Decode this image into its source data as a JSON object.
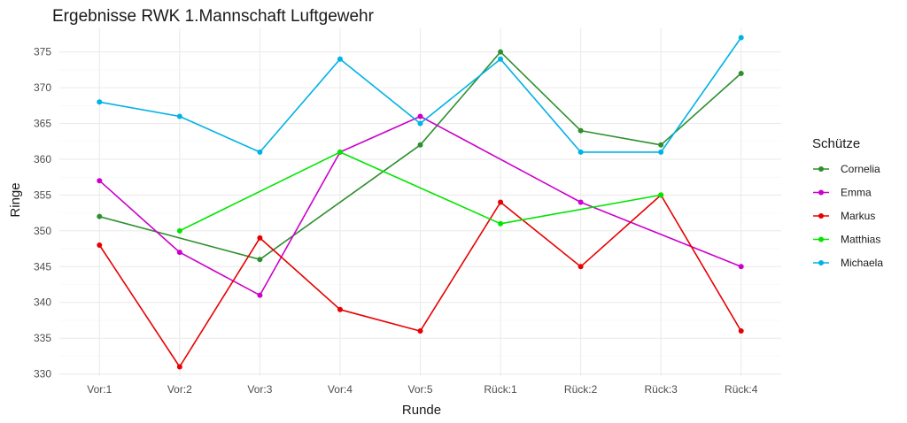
{
  "chart_data": {
    "type": "line",
    "title": "Ergebnisse RWK 1.Mannschaft Luftgewehr",
    "xlabel": "Runde",
    "ylabel": "Ringe",
    "categories": [
      "Vor:1",
      "Vor:2",
      "Vor:3",
      "Vor:4",
      "Vor:5",
      "Rück:1",
      "Rück:2",
      "Rück:3",
      "Rück:4"
    ],
    "yticks": [
      330,
      335,
      340,
      345,
      350,
      355,
      360,
      365,
      370,
      375
    ],
    "ytick_labels": [
      "330",
      "335",
      "340",
      "345",
      "350",
      "355",
      "360",
      "365",
      "370",
      "375"
    ],
    "ylim": [
      329.7,
      378.3
    ],
    "grid": true,
    "legend": {
      "title": "Schütze",
      "position": "right"
    },
    "series": [
      {
        "name": "Cornelia",
        "color": "#2f8f2f",
        "values": [
          352,
          null,
          346,
          null,
          362,
          375,
          364,
          362,
          372
        ]
      },
      {
        "name": "Emma",
        "color": "#cc00cc",
        "values": [
          357,
          347,
          341,
          361,
          366,
          null,
          354,
          null,
          345
        ]
      },
      {
        "name": "Markus",
        "color": "#e60000",
        "values": [
          348,
          331,
          349,
          339,
          336,
          354,
          345,
          355,
          336
        ]
      },
      {
        "name": "Matthias",
        "color": "#00e600",
        "values": [
          null,
          350,
          null,
          361,
          null,
          351,
          null,
          355,
          null
        ]
      },
      {
        "name": "Michaela",
        "color": "#00b2e6",
        "values": [
          368,
          366,
          361,
          374,
          365,
          374,
          361,
          361,
          377
        ]
      }
    ]
  }
}
